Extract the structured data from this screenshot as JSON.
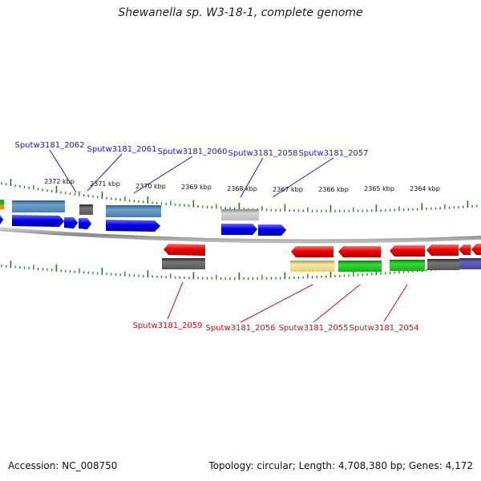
{
  "title": "Shewanella sp. W3-18-1, complete genome",
  "footer": {
    "accession": "Accession: NC_008750",
    "summary": "Topology: circular; Length: 4,708,380 bp; Genes: 4,172"
  },
  "colors": {
    "forward_label": "#1a1acc",
    "reverse_label": "#cc1111",
    "tick": "#1e7a1e",
    "backbone": "#888888"
  },
  "scale_ticks": [
    "2372 kbp",
    "2371 kbp",
    "2370 kbp",
    "2369 kbp",
    "2368 kbp",
    "2367 kbp",
    "2366 kbp",
    "2365 kbp",
    "2364 kbp"
  ],
  "forward_genes": [
    {
      "label": "Sputw3181_2062"
    },
    {
      "label": "Sputw3181_2061"
    },
    {
      "label": "Sputw3181_2060"
    },
    {
      "label": "Sputw3181_2058"
    },
    {
      "label": "Sputw3181_2057"
    }
  ],
  "reverse_genes": [
    {
      "label": "Sputw3181_2059"
    },
    {
      "label": "Sputw3181_2056"
    },
    {
      "label": "Sputw3181_2055"
    },
    {
      "label": "Sputw3181_2054"
    }
  ]
}
